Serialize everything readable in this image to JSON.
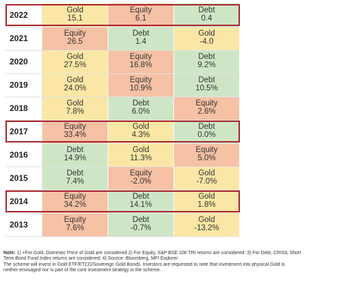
{
  "table": {
    "rows": [
      {
        "year": "2022",
        "cells": [
          {
            "name": "Gold",
            "value": "15.1"
          },
          {
            "name": "Equity",
            "value": "6.1"
          },
          {
            "name": "Debt",
            "value": "0.4"
          }
        ]
      },
      {
        "year": "2021",
        "cells": [
          {
            "name": "Equity",
            "value": "26.5"
          },
          {
            "name": "Debt",
            "value": "1.4"
          },
          {
            "name": "Gold",
            "value": "-4.0"
          }
        ]
      },
      {
        "year": "2020",
        "cells": [
          {
            "name": "Gold",
            "value": "27.5%"
          },
          {
            "name": "Equity",
            "value": "16.8%"
          },
          {
            "name": "Debt",
            "value": "9.2%"
          }
        ]
      },
      {
        "year": "2019",
        "cells": [
          {
            "name": "Gold",
            "value": "24.0%"
          },
          {
            "name": "Equity",
            "value": "10.9%"
          },
          {
            "name": "Debt",
            "value": "10.5%"
          }
        ]
      },
      {
        "year": "2018",
        "cells": [
          {
            "name": "Gold",
            "value": "7.8%"
          },
          {
            "name": "Debt",
            "value": "6.0%"
          },
          {
            "name": "Equity",
            "value": "2.6%"
          }
        ]
      },
      {
        "year": "2017",
        "cells": [
          {
            "name": "Equity",
            "value": "33.4%"
          },
          {
            "name": "Gold",
            "value": "4.3%"
          },
          {
            "name": "Debt",
            "value": "0.0%"
          }
        ]
      },
      {
        "year": "2016",
        "cells": [
          {
            "name": "Debt",
            "value": "14.9%"
          },
          {
            "name": "Gold",
            "value": "11.3%"
          },
          {
            "name": "Equity",
            "value": "5.0%"
          }
        ]
      },
      {
        "year": "2015",
        "cells": [
          {
            "name": "Debt",
            "value": "7.4%"
          },
          {
            "name": "Equity",
            "value": "-2.0%"
          },
          {
            "name": "Gold",
            "value": "-7.0%"
          }
        ]
      },
      {
        "year": "2014",
        "cells": [
          {
            "name": "Equity",
            "value": "34.2%"
          },
          {
            "name": "Debt",
            "value": "14.1%"
          },
          {
            "name": "Gold",
            "value": "1.8%"
          }
        ]
      },
      {
        "year": "2013",
        "cells": [
          {
            "name": "Equity",
            "value": "7.6%"
          },
          {
            "name": "Debt",
            "value": "-0.7%"
          },
          {
            "name": "Gold",
            "value": "-13.2%"
          }
        ]
      }
    ],
    "highlighted_years": [
      "2022",
      "2017",
      "2014"
    ]
  },
  "colors": {
    "Gold": "#fbe7a5",
    "Equity": "#f6c1a5",
    "Debt": "#cfe6c6",
    "highlight_border": "#a8242b"
  },
  "note": {
    "label": "Note:",
    "line1": " 1) +For Gold, Domestic Price of Gold are considered 2) For Equity, S&P BSE 100 TRI returns are considered: 3) For Debt, CRISIL Short",
    "line2": "Term Bond Fund Index returns are considered; 4) Source: Bloomberg, MFI Explorer",
    "line3": "The scheme will invest in Gold ETF/ETCD/Sovereign Gold Bonds. Investors are requested to note that investment into physical Gold is",
    "line4": "neither envisaged nor is part of the core investment strategy in the scheme."
  }
}
